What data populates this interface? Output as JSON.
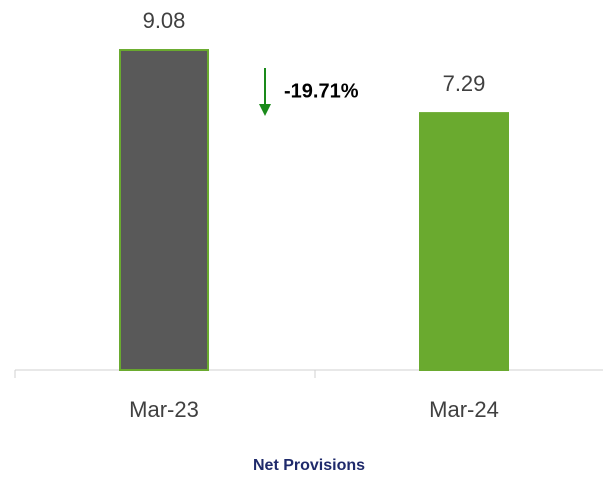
{
  "chart_data": {
    "type": "bar",
    "title": "Net Provisions",
    "categories": [
      "Mar-23",
      "Mar-24"
    ],
    "values": [
      9.08,
      7.29
    ],
    "colors": [
      "#595959",
      "#6aaa2f"
    ],
    "edgecolor": "#6aaa2f",
    "annotation": "-19.71%"
  }
}
